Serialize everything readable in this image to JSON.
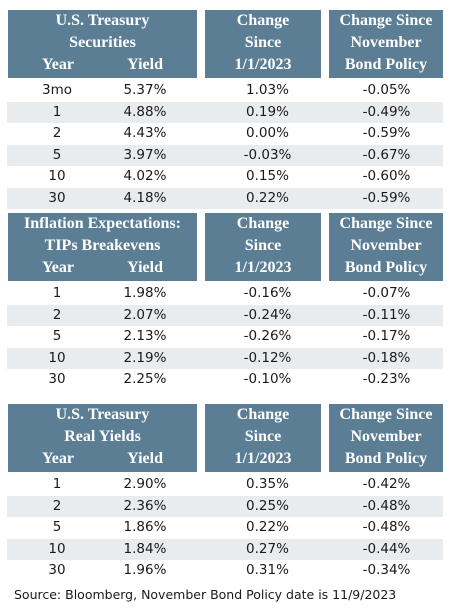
{
  "sections": [
    {
      "title_lines": [
        "U.S. Treasury",
        "Securities"
      ],
      "col_year": "Year",
      "col_yield": "Yield",
      "change_lines": [
        "Change",
        "Since",
        "1/1/2023"
      ],
      "policy_lines": [
        "Change Since",
        "November",
        "Bond Policy"
      ],
      "rows": [
        {
          "year": "3mo",
          "yield": "5.37%",
          "change": "1.03%",
          "policy": "-0.05%"
        },
        {
          "year": "1",
          "yield": "4.88%",
          "change": "0.19%",
          "policy": "-0.49%"
        },
        {
          "year": "2",
          "yield": "4.43%",
          "change": "0.00%",
          "policy": "-0.59%"
        },
        {
          "year": "5",
          "yield": "3.97%",
          "change": "-0.03%",
          "policy": "-0.67%"
        },
        {
          "year": "10",
          "yield": "4.02%",
          "change": "0.15%",
          "policy": "-0.60%"
        },
        {
          "year": "30",
          "yield": "4.18%",
          "change": "0.22%",
          "policy": "-0.59%"
        }
      ]
    },
    {
      "title_lines": [
        "Inflation Expectations:",
        "TIPs Breakevens"
      ],
      "col_year": "Year",
      "col_yield": "Yield",
      "change_lines": [
        "Change",
        "Since",
        "1/1/2023"
      ],
      "policy_lines": [
        "Change Since",
        "November",
        "Bond Policy"
      ],
      "rows": [
        {
          "year": "1",
          "yield": "1.98%",
          "change": "-0.16%",
          "policy": "-0.07%"
        },
        {
          "year": "2",
          "yield": "2.07%",
          "change": "-0.24%",
          "policy": "-0.11%"
        },
        {
          "year": "5",
          "yield": "2.13%",
          "change": "-0.26%",
          "policy": "-0.17%"
        },
        {
          "year": "10",
          "yield": "2.19%",
          "change": "-0.12%",
          "policy": "-0.18%"
        },
        {
          "year": "30",
          "yield": "2.25%",
          "change": "-0.10%",
          "policy": "-0.23%"
        }
      ]
    },
    {
      "title_lines": [
        "U.S. Treasury",
        "Real Yields"
      ],
      "col_year": "Year",
      "col_yield": "Yield",
      "change_lines": [
        "Change",
        "Since",
        "1/1/2023"
      ],
      "policy_lines": [
        "Change Since",
        "November",
        "Bond Policy"
      ],
      "rows": [
        {
          "year": "1",
          "yield": "2.90%",
          "change": "0.35%",
          "policy": "-0.42%"
        },
        {
          "year": "2",
          "yield": "2.36%",
          "change": "0.25%",
          "policy": "-0.48%"
        },
        {
          "year": "5",
          "yield": "1.86%",
          "change": "0.22%",
          "policy": "-0.48%"
        },
        {
          "year": "10",
          "yield": "1.84%",
          "change": "0.27%",
          "policy": "-0.44%"
        },
        {
          "year": "30",
          "yield": "1.96%",
          "change": "0.31%",
          "policy": "-0.34%"
        }
      ]
    }
  ],
  "source_note": "Source: Bloomberg, November Bond Policy date is 11/9/2023",
  "colors": {
    "header_bg": "#5b7e95",
    "header_text": "#ffffff",
    "row_shade": "#e9ecef"
  }
}
